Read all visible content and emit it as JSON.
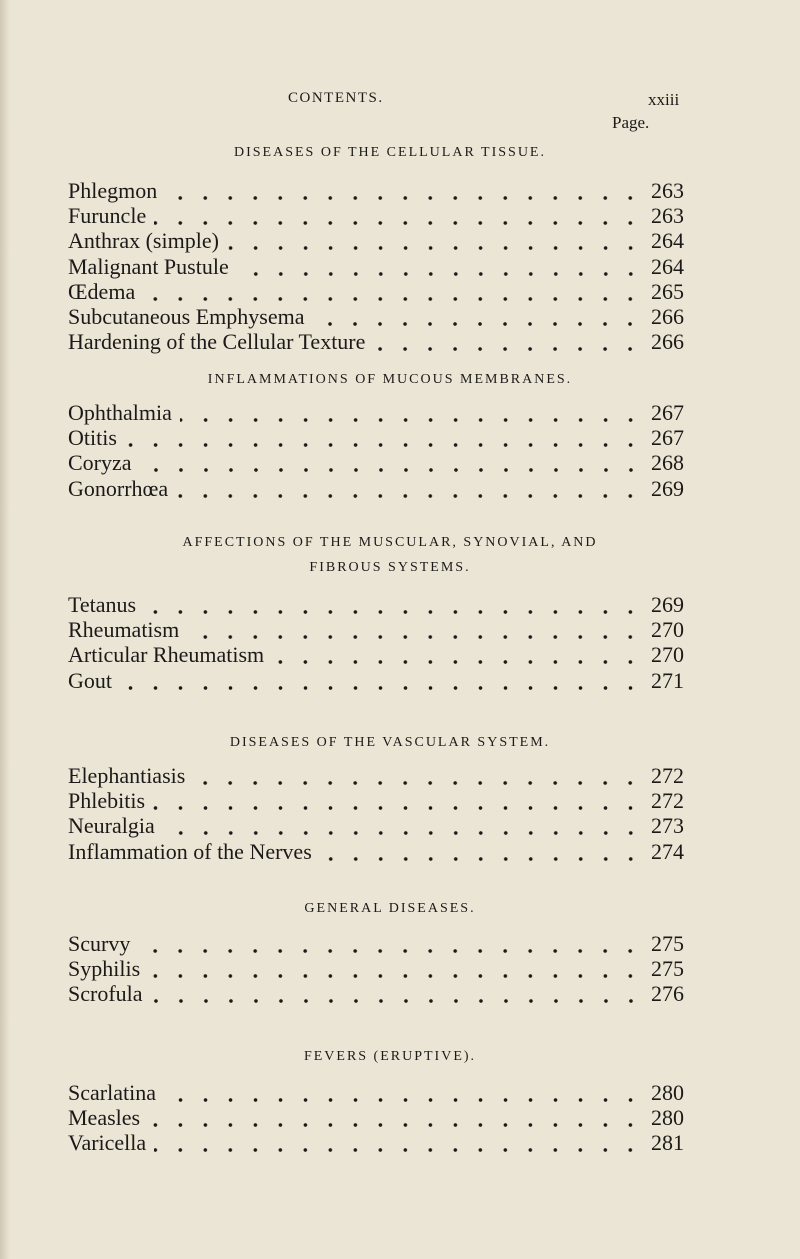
{
  "header": {
    "running_title": "CONTENTS.",
    "page_number": "xxiii",
    "column_label": "Page."
  },
  "sections": [
    {
      "heading": [
        "DISEASES OF THE CELLULAR TISSUE."
      ],
      "entries": [
        {
          "title": "Phlegmon",
          "page": 263
        },
        {
          "title": "Furuncle",
          "page": 263
        },
        {
          "title": "Anthrax (simple)",
          "page": 264
        },
        {
          "title": "Malignant Pustule",
          "page": 264
        },
        {
          "title": "Œdema",
          "page": 265
        },
        {
          "title": "Subcutaneous Emphysema",
          "page": 266
        },
        {
          "title": "Hardening of the Cellular Texture",
          "page": 266
        }
      ]
    },
    {
      "heading": [
        "INFLAMMATIONS OF MUCOUS MEMBRANES."
      ],
      "entries": [
        {
          "title": "Ophthalmia",
          "page": 267
        },
        {
          "title": "Otitis",
          "page": 267
        },
        {
          "title": "Coryza",
          "page": 268
        },
        {
          "title": "Gonorrhœa",
          "page": 269
        }
      ]
    },
    {
      "heading": [
        "AFFECTIONS OF THE MUSCULAR, SYNOVIAL, AND",
        "FIBROUS SYSTEMS."
      ],
      "entries": [
        {
          "title": "Tetanus",
          "page": 269
        },
        {
          "title": "Rheumatism",
          "page": 270
        },
        {
          "title": "Articular Rheumatism",
          "page": 270
        },
        {
          "title": "Gout",
          "page": 271
        }
      ]
    },
    {
      "heading": [
        "DISEASES OF THE VASCULAR SYSTEM."
      ],
      "entries": [
        {
          "title": "Elephantiasis",
          "page": 272
        },
        {
          "title": "Phlebitis",
          "page": 272
        },
        {
          "title": "Neuralgia",
          "page": 273
        },
        {
          "title": "Inflammation of the Nerves",
          "page": 274
        }
      ]
    },
    {
      "heading": [
        "GENERAL DISEASES."
      ],
      "entries": [
        {
          "title": "Scurvy",
          "page": 275
        },
        {
          "title": "Syphilis",
          "page": 275
        },
        {
          "title": "Scrofula",
          "page": 276
        }
      ]
    },
    {
      "heading": [
        "FEVERS (ERUPTIVE)."
      ],
      "entries": [
        {
          "title": "Scarlatina",
          "page": 280
        },
        {
          "title": "Measles",
          "page": 280
        },
        {
          "title": "Varicella",
          "page": 281
        }
      ]
    }
  ]
}
